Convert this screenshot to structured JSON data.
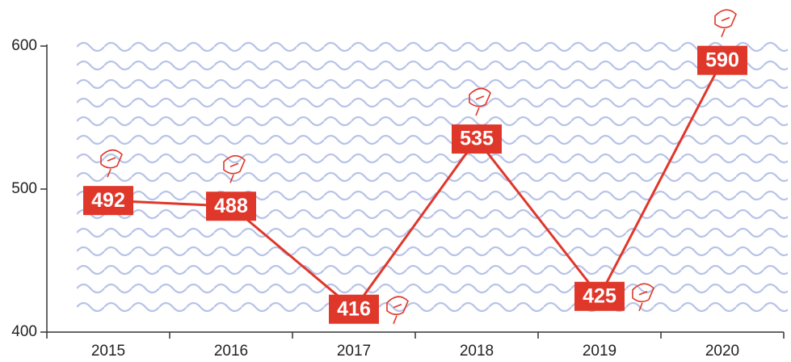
{
  "chart_data": {
    "type": "line",
    "categories": [
      "2015",
      "2016",
      "2017",
      "2018",
      "2019",
      "2020"
    ],
    "values": [
      492,
      488,
      416,
      535,
      425,
      590
    ],
    "color": "#e0372b",
    "ylim": [
      400,
      600
    ],
    "yticks": [
      400,
      500,
      600
    ]
  }
}
